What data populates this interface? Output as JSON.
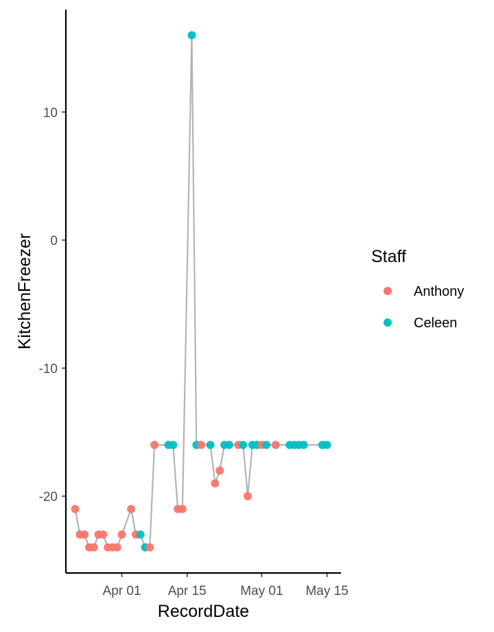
{
  "chart_data": {
    "type": "scatter",
    "xlabel": "RecordDate",
    "ylabel": "KitchenFreezer",
    "x_tick_labels": [
      "Apr 01",
      "Apr 15",
      "May 01",
      "May 15"
    ],
    "x_tick_dates": [
      "2021-04-01",
      "2021-04-15",
      "2021-05-01",
      "2021-05-15"
    ],
    "y_tick_labels": [
      "10",
      "0",
      "-10",
      "-20"
    ],
    "y_tick_values": [
      10,
      0,
      -10,
      -20
    ],
    "xlim": [
      "2021-03-20",
      "2021-05-18"
    ],
    "ylim": [
      -26,
      18
    ],
    "grid": false,
    "connecting_line": true,
    "line_color": "#b3b3b3",
    "legend": {
      "title": "Staff",
      "position": "right",
      "entries": [
        {
          "name": "Anthony",
          "color": "#F8766D"
        },
        {
          "name": "Celeen",
          "color": "#00BFC4"
        }
      ]
    },
    "points": [
      {
        "x": "2021-03-22",
        "y": -21,
        "staff": "Anthony"
      },
      {
        "x": "2021-03-23",
        "y": -23,
        "staff": "Anthony"
      },
      {
        "x": "2021-03-24",
        "y": -23,
        "staff": "Anthony"
      },
      {
        "x": "2021-03-25",
        "y": -24,
        "staff": "Anthony"
      },
      {
        "x": "2021-03-26",
        "y": -24,
        "staff": "Anthony"
      },
      {
        "x": "2021-03-27",
        "y": -23,
        "staff": "Anthony"
      },
      {
        "x": "2021-03-28",
        "y": -23,
        "staff": "Anthony"
      },
      {
        "x": "2021-03-29",
        "y": -24,
        "staff": "Anthony"
      },
      {
        "x": "2021-03-30",
        "y": -24,
        "staff": "Anthony"
      },
      {
        "x": "2021-03-31",
        "y": -24,
        "staff": "Anthony"
      },
      {
        "x": "2021-04-01",
        "y": -23,
        "staff": "Anthony"
      },
      {
        "x": "2021-04-03",
        "y": -21,
        "staff": "Anthony"
      },
      {
        "x": "2021-04-04",
        "y": -23,
        "staff": "Anthony"
      },
      {
        "x": "2021-04-05",
        "y": -23,
        "staff": "Celeen"
      },
      {
        "x": "2021-04-06",
        "y": -24,
        "staff": "Celeen"
      },
      {
        "x": "2021-04-07",
        "y": -24,
        "staff": "Anthony"
      },
      {
        "x": "2021-04-08",
        "y": -16,
        "staff": "Anthony"
      },
      {
        "x": "2021-04-11",
        "y": -16,
        "staff": "Celeen"
      },
      {
        "x": "2021-04-12",
        "y": -16,
        "staff": "Celeen"
      },
      {
        "x": "2021-04-13",
        "y": -21,
        "staff": "Anthony"
      },
      {
        "x": "2021-04-14",
        "y": -21,
        "staff": "Anthony"
      },
      {
        "x": "2021-04-16",
        "y": 16,
        "staff": "Celeen"
      },
      {
        "x": "2021-04-17",
        "y": -16,
        "staff": "Celeen"
      },
      {
        "x": "2021-04-18",
        "y": -16,
        "staff": "Anthony"
      },
      {
        "x": "2021-04-20",
        "y": -16,
        "staff": "Celeen"
      },
      {
        "x": "2021-04-21",
        "y": -19,
        "staff": "Anthony"
      },
      {
        "x": "2021-04-22",
        "y": -18,
        "staff": "Anthony"
      },
      {
        "x": "2021-04-23",
        "y": -16,
        "staff": "Celeen"
      },
      {
        "x": "2021-04-24",
        "y": -16,
        "staff": "Celeen"
      },
      {
        "x": "2021-04-26",
        "y": -16,
        "staff": "Anthony"
      },
      {
        "x": "2021-04-27",
        "y": -16,
        "staff": "Celeen"
      },
      {
        "x": "2021-04-28",
        "y": -20,
        "staff": "Anthony"
      },
      {
        "x": "2021-04-29",
        "y": -16,
        "staff": "Celeen"
      },
      {
        "x": "2021-04-30",
        "y": -16,
        "staff": "Celeen"
      },
      {
        "x": "2021-05-01",
        "y": -16,
        "staff": "Anthony"
      },
      {
        "x": "2021-05-02",
        "y": -16,
        "staff": "Celeen"
      },
      {
        "x": "2021-05-04",
        "y": -16,
        "staff": "Anthony"
      },
      {
        "x": "2021-05-07",
        "y": -16,
        "staff": "Celeen"
      },
      {
        "x": "2021-05-08",
        "y": -16,
        "staff": "Celeen"
      },
      {
        "x": "2021-05-09",
        "y": -16,
        "staff": "Celeen"
      },
      {
        "x": "2021-05-10",
        "y": -16,
        "staff": "Celeen"
      },
      {
        "x": "2021-05-14",
        "y": -16,
        "staff": "Celeen"
      },
      {
        "x": "2021-05-15",
        "y": -16,
        "staff": "Celeen"
      }
    ]
  }
}
